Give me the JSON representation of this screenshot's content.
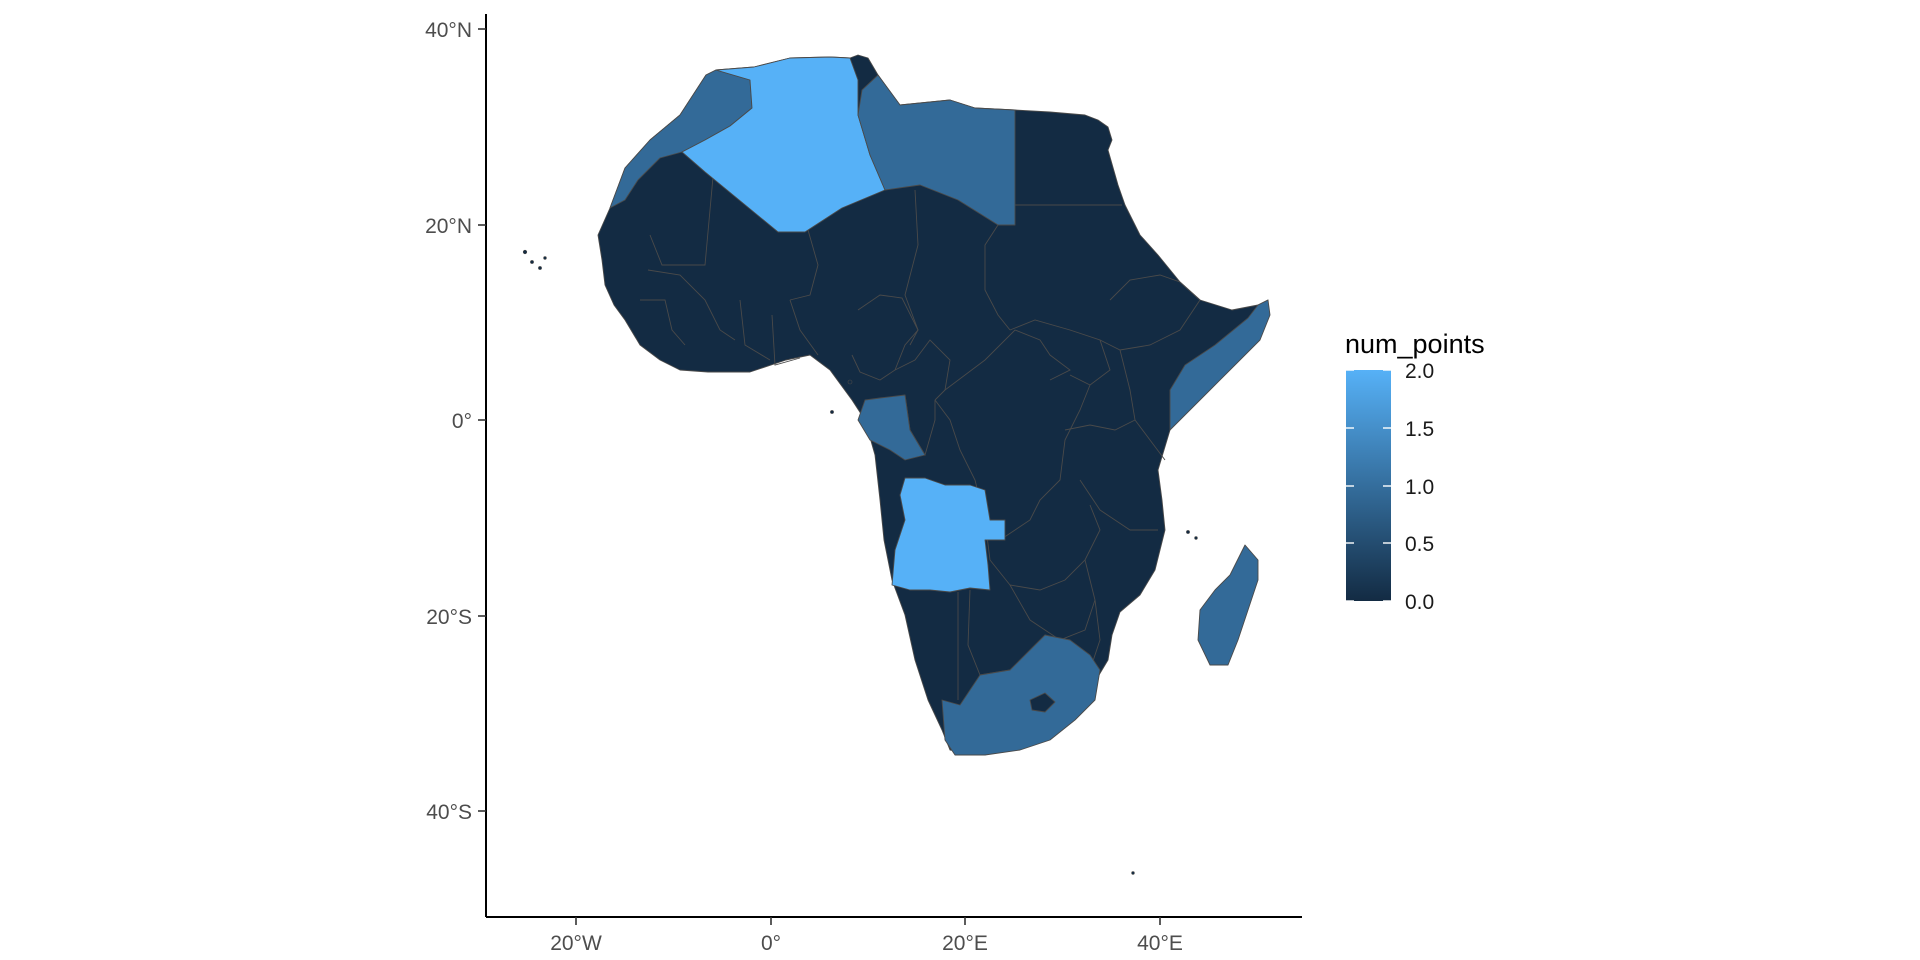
{
  "chart_data": {
    "type": "map",
    "region": "Africa",
    "fill_variable": "num_points",
    "legend": {
      "title": "num_points",
      "labels": [
        "2.0",
        "1.5",
        "1.0",
        "0.5",
        "0.0"
      ],
      "range": [
        0,
        2
      ],
      "low_color": "#132B43",
      "high_color": "#56B1F7",
      "placement": "right"
    },
    "xaxis": {
      "tick_labels": [
        "20°W",
        "0°",
        "20°E",
        "40°E"
      ],
      "range": [
        -29,
        55
      ]
    },
    "yaxis": {
      "tick_labels": [
        "40°N",
        "20°N",
        "0°",
        "20°S",
        "40°S"
      ],
      "range": [
        -51,
        41
      ]
    },
    "grid": false,
    "highlighted_countries": [
      {
        "country": "Algeria",
        "num_points": 2
      },
      {
        "country": "Angola",
        "num_points": 2
      },
      {
        "country": "Morocco",
        "num_points": 1
      },
      {
        "country": "Libya",
        "num_points": 1
      },
      {
        "country": "Gabon",
        "num_points": 1
      },
      {
        "country": "Somalia",
        "num_points": 1
      },
      {
        "country": "South Africa",
        "num_points": 1
      },
      {
        "country": "Madagascar",
        "num_points": 1
      }
    ]
  }
}
